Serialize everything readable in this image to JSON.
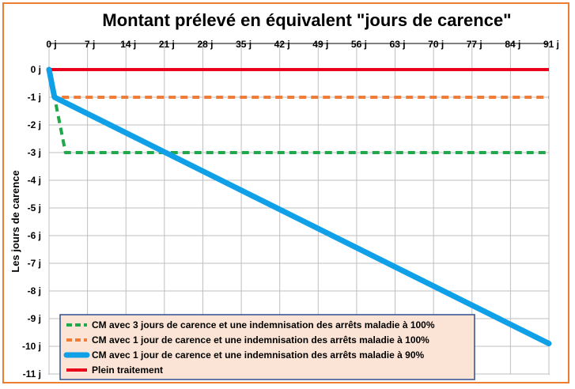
{
  "chart_data": {
    "type": "line",
    "title": "Montant prélevé en équivalent \"jours de carence\"",
    "ylabel": "Les jours de carence",
    "xlabel": "",
    "x_ticks": [
      "0 j",
      "7 j",
      "14 j",
      "21 j",
      "28 j",
      "35 j",
      "42 j",
      "49 j",
      "56 j",
      "63 j",
      "70 j",
      "77 j",
      "84 j",
      "91 j"
    ],
    "y_ticks": [
      "0 j",
      "-1 j",
      "-2 j",
      "-3 j",
      "-4 j",
      "-5 j",
      "-6 j",
      "-7 j",
      "-8 j",
      "-9 j",
      "-10 j",
      "-11 j"
    ],
    "xlim": [
      0,
      91
    ],
    "ylim": [
      -11,
      0
    ],
    "grid": true,
    "legend_position": "bottom-left",
    "series": [
      {
        "name": "CM avec 3 jours de carence et une indemnisation des arrêts maladie à 100%",
        "color": "#21A84A",
        "style": "dashed",
        "points": [
          [
            0,
            0
          ],
          [
            1,
            -1
          ],
          [
            2,
            -2
          ],
          [
            3,
            -3
          ],
          [
            91,
            -3
          ]
        ]
      },
      {
        "name": "CM avec 1 jour de carence et une indemnisation des arrêts maladie à 100%",
        "color": "#F07C3A",
        "style": "dashed",
        "points": [
          [
            0,
            0
          ],
          [
            1,
            -1
          ],
          [
            91,
            -1
          ]
        ]
      },
      {
        "name": "CM avec 1 jour de carence et une indemnisation des arrêts maladie à 90%",
        "color": "#0FA0E8",
        "style": "solid-thick",
        "points": [
          [
            0,
            0
          ],
          [
            1,
            -1
          ],
          [
            91,
            -9.9
          ]
        ]
      },
      {
        "name": "Plein traitement",
        "color": "#E8001C",
        "style": "solid",
        "points": [
          [
            0,
            0
          ],
          [
            91,
            0
          ]
        ]
      }
    ]
  }
}
